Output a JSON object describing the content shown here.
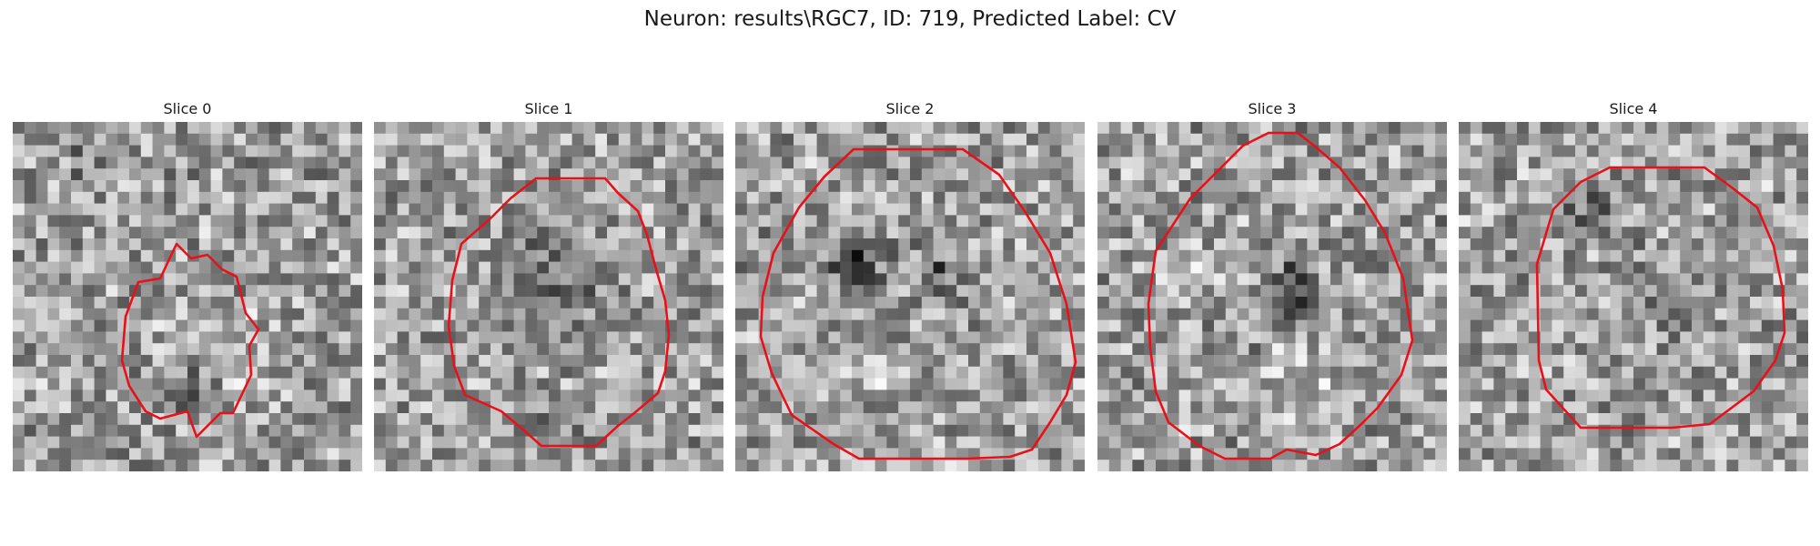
{
  "figure": {
    "title": "Neuron: results\\RGC7, ID: 719, Predicted Label: CV"
  },
  "colors": {
    "contour": "#e8111a",
    "background": "#ffffff"
  },
  "panels": [
    {
      "title": "Slice 0"
    },
    {
      "title": "Slice 1"
    },
    {
      "title": "Slice 2"
    },
    {
      "title": "Slice 3"
    },
    {
      "title": "Slice 4"
    }
  ]
}
